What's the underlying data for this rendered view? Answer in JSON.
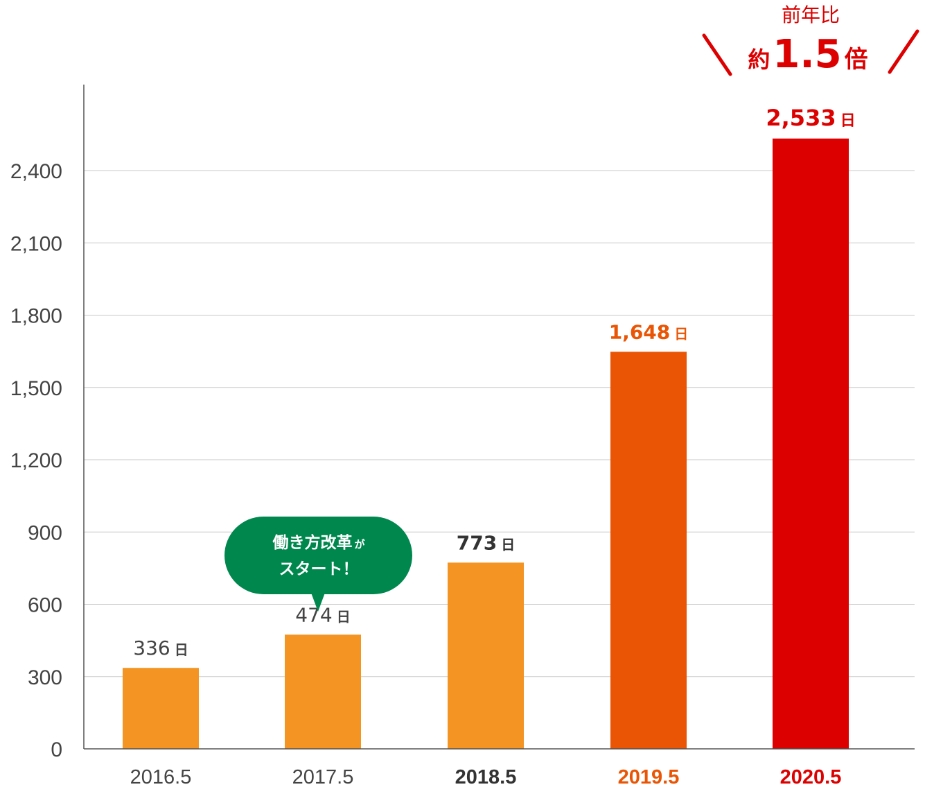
{
  "chart_data": {
    "type": "bar",
    "categories": [
      "2016.5",
      "2017.5",
      "2018.5",
      "2019.5",
      "2020.5"
    ],
    "values": [
      336,
      474,
      773,
      1648,
      2533
    ],
    "value_labels": [
      "336",
      "474",
      "773",
      "1,648",
      "2,533"
    ],
    "value_unit": "日",
    "bar_colors": [
      "#f39423",
      "#f39423",
      "#f39423",
      "#e95504",
      "#dc0000"
    ],
    "label_colors": [
      "#444444",
      "#444444",
      "#333333",
      "#e95504",
      "#dc0000"
    ],
    "bold_categories": [
      false,
      false,
      true,
      true,
      true
    ],
    "ylim": [
      0,
      2700
    ],
    "yticks": [
      0,
      300,
      600,
      900,
      1200,
      1500,
      1800,
      2100,
      2400
    ],
    "ytick_labels": [
      "0",
      "300",
      "600",
      "900",
      "1,200",
      "1,500",
      "1,800",
      "2,100",
      "2,400"
    ],
    "grid": true,
    "callout": {
      "line1": "働き方改革",
      "line1_small": "が",
      "line2": "スタート！",
      "color": "#00874e",
      "points_to": "2017.5"
    },
    "highlight": {
      "line1": "前年比",
      "prefix": "約",
      "number": "1.5",
      "suffix": "倍",
      "color": "#dc0000"
    }
  }
}
